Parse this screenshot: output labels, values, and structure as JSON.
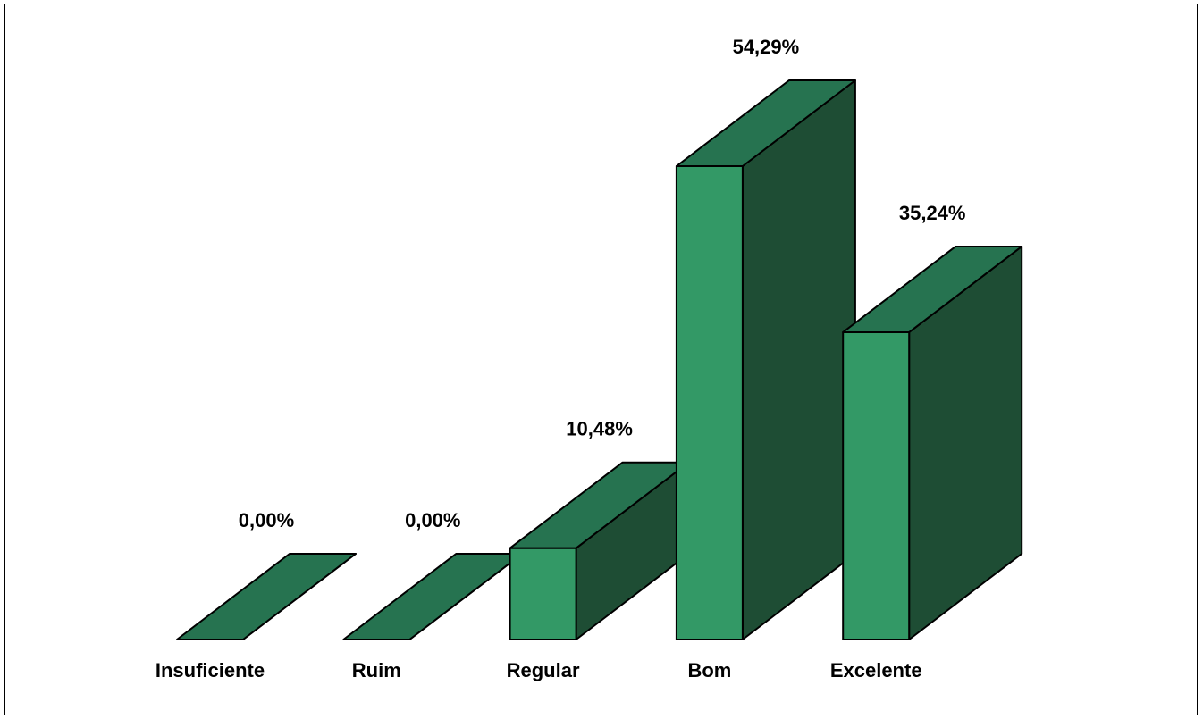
{
  "chart_data": {
    "type": "bar",
    "categories": [
      "Insuficiente",
      "Ruim",
      "Regular",
      "Bom",
      "Excelente"
    ],
    "values": [
      0.0,
      0.0,
      10.48,
      54.29,
      35.24
    ],
    "value_labels": [
      "0,00%",
      "0,00%",
      "10,48%",
      "54,29%",
      "35,24%"
    ],
    "title": "",
    "xlabel": "",
    "ylabel": "",
    "ylim": [
      0,
      54.29
    ],
    "grid": false,
    "legend": "none",
    "style": "3d-column",
    "colors": {
      "front": "#339966",
      "top": "#267350",
      "side": "#1e4d34",
      "outline": "#000000"
    }
  }
}
